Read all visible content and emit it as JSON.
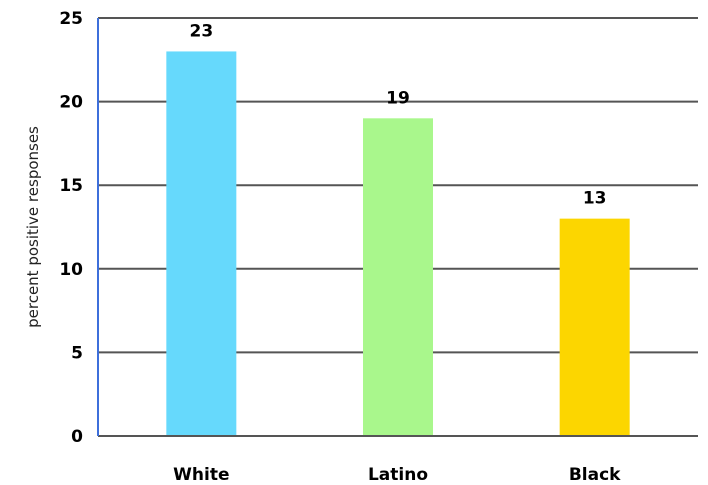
{
  "chart_data": {
    "type": "bar",
    "categories": [
      "White",
      "Latino",
      "Black"
    ],
    "values": [
      23,
      19,
      13
    ],
    "data_labels": [
      "23",
      "19",
      "13"
    ],
    "colors": [
      "#66d9fc",
      "#a9f78c",
      "#fcd600"
    ],
    "ylabel": "percent positive responses",
    "ylim": [
      0,
      25
    ],
    "yticks": [
      0,
      5,
      10,
      15,
      20,
      25
    ],
    "ytick_labels": [
      "0",
      "5",
      "10",
      "15",
      "20",
      "25"
    ],
    "grid": true,
    "y_axis_color": "#3d6fdb",
    "grid_color": "#555555"
  }
}
